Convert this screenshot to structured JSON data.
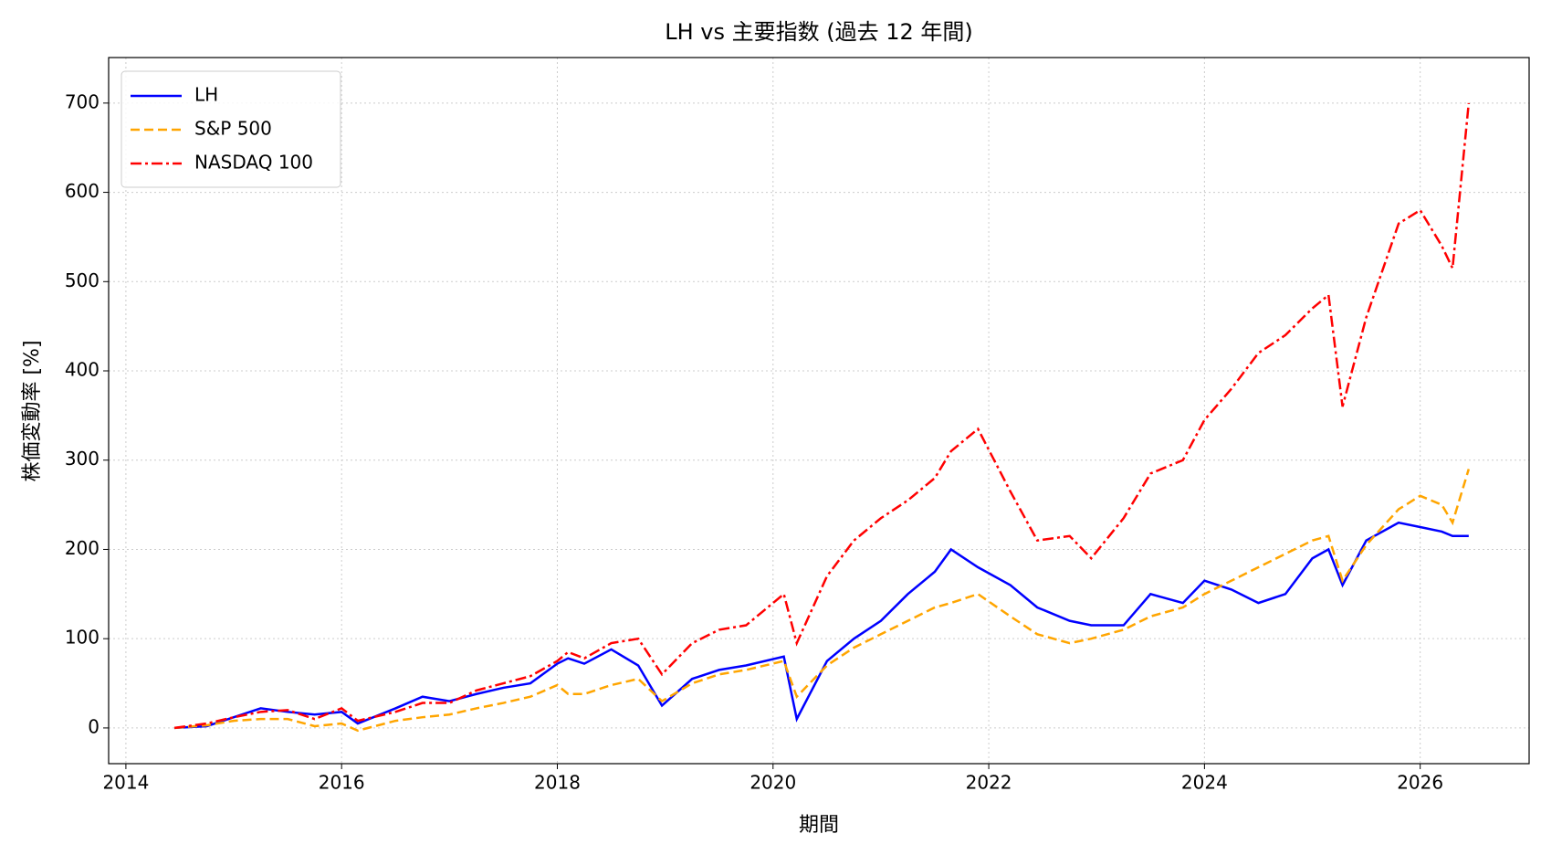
{
  "chart_data": {
    "type": "line",
    "title": "LH vs 主要指数 (過去 12 年間)",
    "x_label": "期間",
    "y_label": "株価変動率 [%]",
    "x": [
      2014.45,
      2014.75,
      2015.0,
      2015.25,
      2015.5,
      2015.75,
      2016.0,
      2016.15,
      2016.5,
      2016.75,
      2017.0,
      2017.25,
      2017.5,
      2017.75,
      2018.0,
      2018.1,
      2018.25,
      2018.5,
      2018.75,
      2018.97,
      2019.25,
      2019.5,
      2019.75,
      2020.1,
      2020.22,
      2020.5,
      2020.75,
      2021.0,
      2021.25,
      2021.5,
      2021.65,
      2021.9,
      2022.2,
      2022.45,
      2022.75,
      2022.95,
      2023.25,
      2023.5,
      2023.8,
      2024.0,
      2024.25,
      2024.5,
      2024.75,
      2025.0,
      2025.15,
      2025.28,
      2025.5,
      2025.8,
      2026.0,
      2026.2,
      2026.3,
      2026.45
    ],
    "series": [
      {
        "name": "LH",
        "color": "#0000ff",
        "linestyle": "solid",
        "values": [
          0,
          2,
          12,
          22,
          18,
          15,
          18,
          5,
          22,
          35,
          30,
          38,
          45,
          50,
          72,
          78,
          72,
          88,
          70,
          25,
          55,
          65,
          70,
          80,
          10,
          75,
          100,
          120,
          150,
          175,
          200,
          180,
          160,
          135,
          120,
          115,
          115,
          150,
          140,
          165,
          155,
          140,
          150,
          190,
          200,
          160,
          210,
          230,
          225,
          220,
          215,
          215
        ]
      },
      {
        "name": "S&P 500",
        "color": "#ffa500",
        "linestyle": "dashed",
        "values": [
          0,
          3,
          8,
          10,
          10,
          2,
          5,
          -3,
          8,
          12,
          15,
          22,
          28,
          35,
          48,
          38,
          38,
          48,
          55,
          30,
          50,
          60,
          65,
          75,
          35,
          70,
          90,
          105,
          120,
          135,
          140,
          150,
          125,
          105,
          95,
          100,
          110,
          125,
          135,
          150,
          165,
          180,
          195,
          210,
          215,
          165,
          205,
          245,
          260,
          250,
          230,
          290
        ]
      },
      {
        "name": "NASDAQ 100",
        "color": "#ff0000",
        "linestyle": "dashdot",
        "values": [
          0,
          5,
          12,
          18,
          20,
          10,
          22,
          8,
          18,
          28,
          28,
          42,
          50,
          58,
          75,
          85,
          78,
          95,
          100,
          60,
          95,
          110,
          115,
          150,
          95,
          170,
          210,
          235,
          255,
          280,
          310,
          335,
          265,
          210,
          215,
          190,
          235,
          285,
          300,
          345,
          380,
          420,
          440,
          470,
          485,
          360,
          460,
          565,
          580,
          540,
          515,
          700
        ]
      }
    ],
    "xlim": [
      2013.84,
      2027.01
    ],
    "xticks": [
      2014,
      2016,
      2018,
      2020,
      2022,
      2024,
      2026
    ],
    "ylim": [
      -40,
      751
    ],
    "yticks": [
      0,
      100,
      200,
      300,
      400,
      500,
      600,
      700
    ],
    "grid": true,
    "legend": "upper left"
  }
}
